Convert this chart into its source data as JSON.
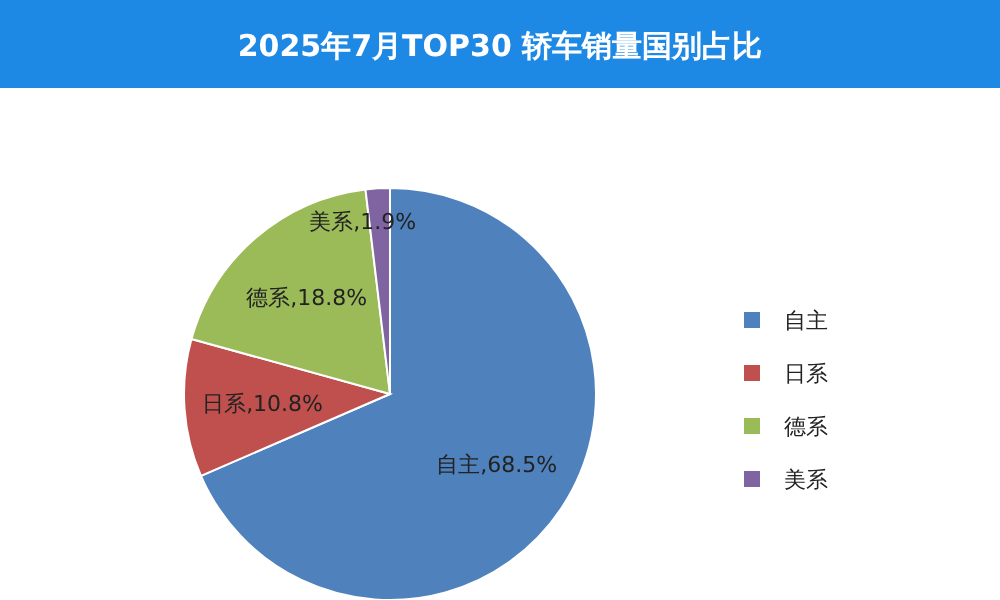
{
  "chart_data": {
    "type": "pie",
    "title": "2025年7月TOP30 轿车销量国别占比",
    "categories": [
      "自主",
      "日系",
      "德系",
      "美系"
    ],
    "values": [
      68.5,
      10.8,
      18.8,
      1.9
    ],
    "colors": [
      "#4f81bd",
      "#c0504d",
      "#9bbb59",
      "#8064a2"
    ],
    "value_labels": [
      ",68.5%",
      ",10.8%",
      ",18.8%",
      ",1.9%"
    ],
    "legend": "right"
  }
}
